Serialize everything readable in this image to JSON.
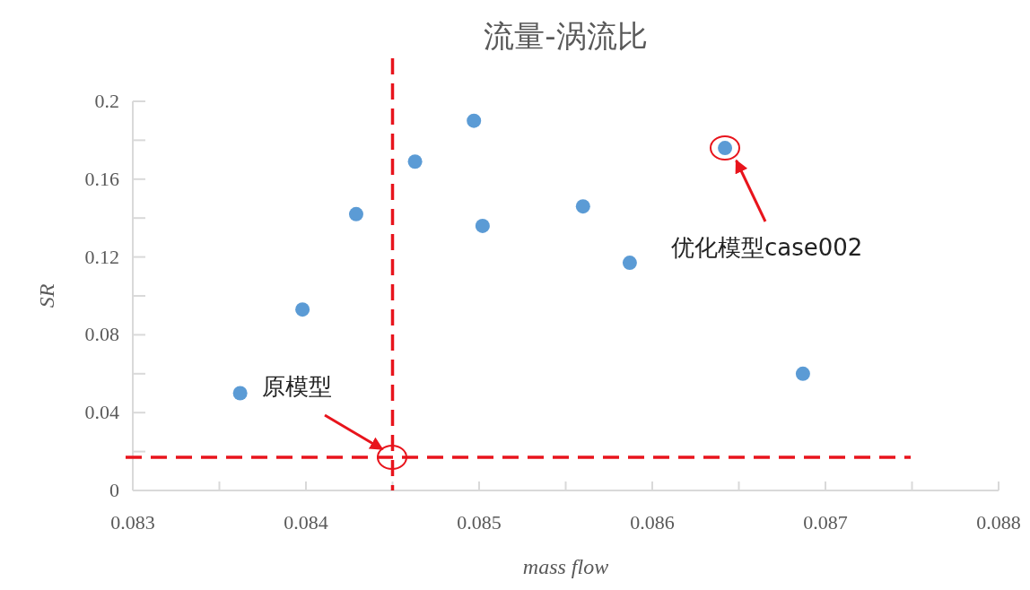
{
  "chart_data": {
    "type": "scatter",
    "title": "流量-涡流比",
    "xlabel": "mass flow",
    "ylabel": "SR",
    "x": [
      0.08362,
      0.08398,
      0.08429,
      0.08463,
      0.08497,
      0.08502,
      0.0856,
      0.08587,
      0.08642,
      0.08687
    ],
    "series": [
      {
        "color": "#5b9bd5",
        "values": [
          0.05,
          0.093,
          0.142,
          0.169,
          0.19,
          0.136,
          0.146,
          0.117,
          0.176,
          0.06
        ]
      }
    ],
    "xlim": [
      0.083,
      0.088
    ],
    "xticks": [
      0.083,
      {
        "value": 0.0835,
        "label": null
      },
      0.084,
      {
        "value": 0.0845,
        "label": null
      },
      0.085,
      {
        "value": 0.0855,
        "label": null
      },
      0.086,
      {
        "value": 0.0865,
        "label": null
      },
      0.087,
      {
        "value": 0.0875,
        "label": null
      },
      0.088
    ],
    "ylim": [
      0,
      0.2
    ],
    "yticks": [
      0,
      {
        "value": 0.02,
        "label": null
      },
      0.04,
      {
        "value": 0.06,
        "label": null
      },
      0.08,
      {
        "value": 0.1,
        "label": null
      },
      0.12,
      {
        "value": 0.14,
        "label": null
      },
      0.16,
      {
        "value": 0.18,
        "label": null
      },
      0.2
    ],
    "ref_lines": [
      {
        "axis": "x",
        "value": 0.0845,
        "color": "#e8141c",
        "line_style": "dashed"
      },
      {
        "axis": "y",
        "value": 0.017,
        "color": "#e8141c",
        "line_style": "dashed"
      }
    ],
    "annotations": [
      "原模型",
      "优化模型case002"
    ],
    "marker": "circle",
    "grid": false
  }
}
